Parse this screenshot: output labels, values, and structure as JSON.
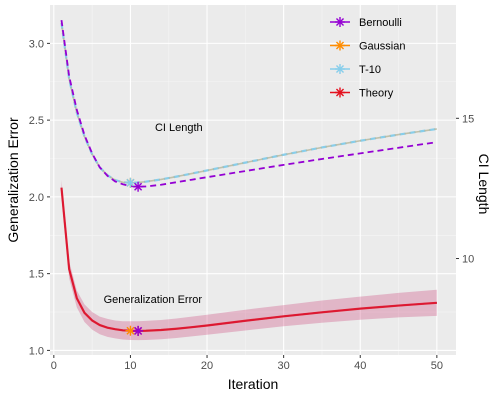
{
  "chart_data": {
    "type": "line",
    "xlabel": "Iteration",
    "ylabel": "Generalization Error",
    "y2label": "CI Length",
    "xlim": [
      -0.5,
      52.5
    ],
    "ylim": [
      0.97,
      3.25
    ],
    "y2lim": [
      6.56,
      19.04
    ],
    "x_ticks": [
      0,
      10,
      20,
      30,
      40,
      50
    ],
    "y_ticks": [
      1.0,
      1.5,
      2.0,
      2.5,
      3.0
    ],
    "y_tick_labels": [
      "1.0",
      "1.5",
      "2.0",
      "2.5",
      "3.0"
    ],
    "y2_ticks": [
      10,
      15
    ],
    "y2_tick_labels": [
      "10",
      "15"
    ],
    "grid": true,
    "legend_position": "top-right",
    "annotations": [
      {
        "text": "CI Length",
        "x": 13.2,
        "y": 2.43
      },
      {
        "text": "Generalization Error",
        "x": 6.5,
        "y": 1.31
      }
    ],
    "series": [
      {
        "name": "Bernoulli",
        "color": "#9400D3",
        "marker": "asterisk"
      },
      {
        "name": "Gaussian",
        "color": "#FF8C00",
        "marker": "asterisk"
      },
      {
        "name": "T-10",
        "color": "#87CEEB",
        "marker": "asterisk"
      },
      {
        "name": "Theory",
        "color": "#E4101E",
        "marker": "asterisk"
      }
    ],
    "generalization_error": {
      "x": [
        1,
        2,
        3,
        4,
        5,
        6,
        7,
        8,
        9,
        10,
        11,
        12,
        14,
        16,
        18,
        20,
        25,
        30,
        35,
        40,
        45,
        50
      ],
      "y": [
        2.06,
        1.53,
        1.34,
        1.245,
        1.195,
        1.165,
        1.148,
        1.138,
        1.131,
        1.128,
        1.127,
        1.128,
        1.133,
        1.141,
        1.151,
        1.162,
        1.193,
        1.222,
        1.248,
        1.272,
        1.292,
        1.31
      ],
      "band_lower": [
        2.0,
        1.47,
        1.28,
        1.185,
        1.135,
        1.105,
        1.088,
        1.078,
        1.071,
        1.068,
        1.067,
        1.068,
        1.073,
        1.081,
        1.091,
        1.102,
        1.13,
        1.157,
        1.18,
        1.2,
        1.215,
        1.225
      ],
      "band_upper": [
        2.11,
        1.58,
        1.39,
        1.3,
        1.25,
        1.22,
        1.205,
        1.195,
        1.19,
        1.19,
        1.19,
        1.192,
        1.198,
        1.208,
        1.22,
        1.232,
        1.265,
        1.295,
        1.325,
        1.35,
        1.375,
        1.395
      ],
      "series": [
        "Bernoulli",
        "Gaussian",
        "T-10",
        "Theory"
      ],
      "minimum_markers": [
        {
          "series": "Gaussian",
          "x": 10,
          "y": 1.128
        },
        {
          "series": "Theory",
          "x": 11,
          "y": 1.127
        },
        {
          "series": "Bernoulli",
          "x": 11,
          "y": 1.127
        }
      ]
    },
    "ci_length": {
      "x": [
        1,
        2,
        3,
        4,
        5,
        6,
        7,
        8,
        9,
        10,
        11,
        12,
        14,
        16,
        18,
        20,
        25,
        30,
        35,
        40,
        45,
        50
      ],
      "bernoulli": [
        18.5,
        16.5,
        15.3,
        14.4,
        13.75,
        13.25,
        12.95,
        12.75,
        12.65,
        12.58,
        12.56,
        12.57,
        12.63,
        12.72,
        12.81,
        12.9,
        13.12,
        13.34,
        13.55,
        13.75,
        13.95,
        14.15
      ],
      "overlay": [
        18.4,
        16.4,
        15.2,
        14.35,
        13.72,
        13.25,
        12.97,
        12.8,
        12.72,
        12.7,
        12.71,
        12.74,
        12.82,
        12.92,
        13.03,
        13.14,
        13.42,
        13.7,
        13.96,
        14.2,
        14.42,
        14.62
      ],
      "overlay_series": [
        "Gaussian",
        "T-10"
      ],
      "minimum_markers": [
        {
          "series": "Gaussian",
          "x": 10,
          "y": 12.7
        },
        {
          "series": "T-10",
          "x": 10,
          "y": 12.7
        },
        {
          "series": "Bernoulli",
          "x": 11,
          "y": 12.56
        }
      ]
    }
  }
}
